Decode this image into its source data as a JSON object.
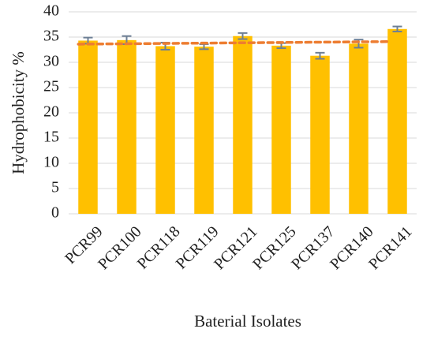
{
  "chart_data": {
    "type": "bar",
    "title": "",
    "xlabel": "Baterial  Isolates",
    "ylabel": "Hydrophobicity %",
    "ylim": [
      0,
      40
    ],
    "yticks": [
      0,
      5,
      10,
      15,
      20,
      25,
      30,
      35,
      40
    ],
    "grid": true,
    "legend": "none",
    "categories": [
      "PCR99",
      "PCR100",
      "PCR118",
      "PCR119",
      "PCR121",
      "PCR125",
      "PCR137",
      "PCR140",
      "PCR141"
    ],
    "series": [
      {
        "values": [
          34.3,
          34.4,
          33.2,
          33.1,
          35.2,
          33.3,
          31.3,
          33.7,
          36.6
        ],
        "error": [
          0.6,
          0.8,
          0.7,
          0.5,
          0.6,
          0.5,
          0.6,
          0.8,
          0.5
        ]
      }
    ],
    "trendline": {
      "type": "linear",
      "start": 33.6,
      "end": 34.1
    },
    "colors": {
      "bar": "#ffc000",
      "error_bar": "#6d7f95",
      "trendline": "#ed7d31",
      "grid": "#d9d9d9",
      "text": "#1f1f1f"
    }
  }
}
